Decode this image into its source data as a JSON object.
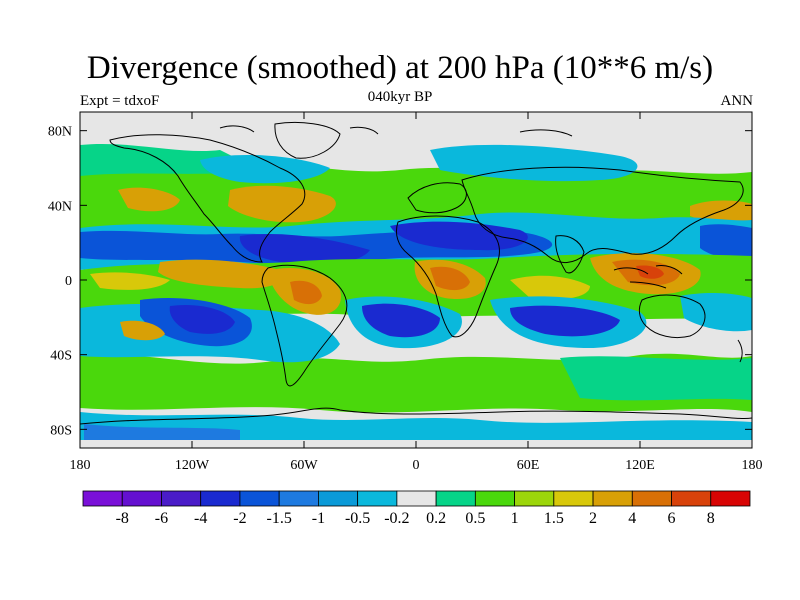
{
  "header": {
    "title": "Divergence (smoothed) at 200 hPa (10**6 m/s)",
    "subtitle": "040kyr BP",
    "left_label": "Expt = tdxoF",
    "right_label": "ANN"
  },
  "map": {
    "lon_range": [
      -180,
      180
    ],
    "lat_range": [
      -90,
      90
    ],
    "x_ticks": [
      {
        "value": -180,
        "label": "180"
      },
      {
        "value": -120,
        "label": "120W"
      },
      {
        "value": -60,
        "label": "60W"
      },
      {
        "value": 0,
        "label": "0"
      },
      {
        "value": 60,
        "label": "60E"
      },
      {
        "value": 120,
        "label": "120E"
      },
      {
        "value": 180,
        "label": "180"
      }
    ],
    "y_ticks": [
      {
        "value": 80,
        "label": "80N"
      },
      {
        "value": 40,
        "label": "40N"
      },
      {
        "value": 0,
        "label": "0"
      },
      {
        "value": -40,
        "label": "40S"
      },
      {
        "value": -80,
        "label": "80S"
      }
    ],
    "background_color": "#e6e6e6"
  },
  "colorbar": {
    "colors": [
      "#7a10d8",
      "#6410d0",
      "#4a1cc8",
      "#1a2ad0",
      "#0a54d8",
      "#1e7ae0",
      "#0a9ad8",
      "#0ab8dc",
      "#e6e6e6",
      "#06d488",
      "#4ad80c",
      "#9cd60a",
      "#d8c80a",
      "#d8a006",
      "#d87006",
      "#d8420a",
      "#d80404"
    ],
    "labels": [
      "-8",
      "-6",
      "-4",
      "-2",
      "-1.5",
      "-1",
      "-0.5",
      "-0.2",
      "0.2",
      "0.5",
      "1",
      "1.5",
      "2",
      "4",
      "6",
      "8"
    ]
  }
}
